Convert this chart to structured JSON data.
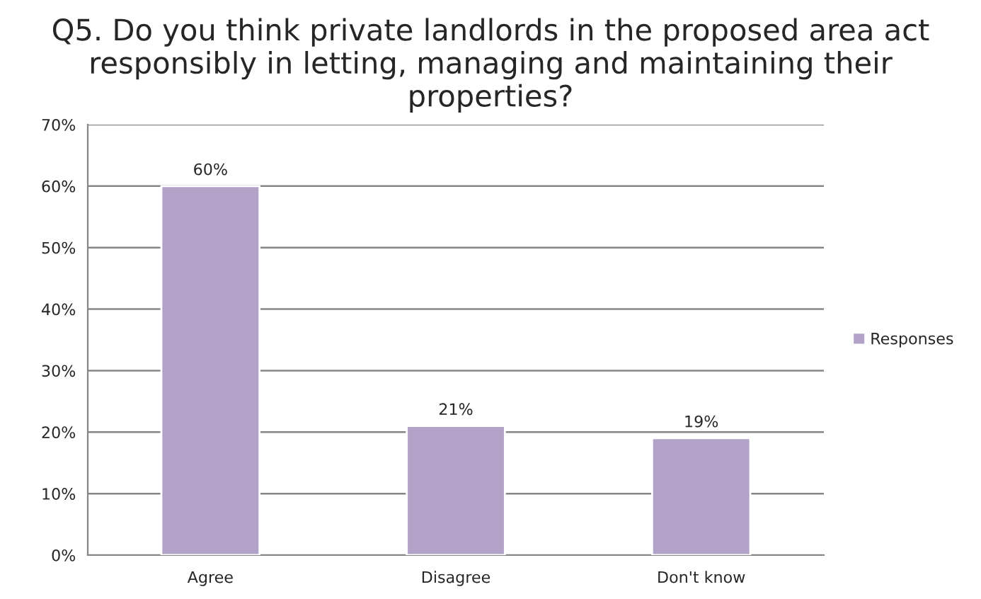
{
  "chart_data": {
    "type": "bar",
    "title": "Q5. Do you think private landlords in the proposed area act responsibly in letting, managing and maintaining their properties?",
    "categories": [
      "Agree",
      "Disagree",
      "Don't know"
    ],
    "series": [
      {
        "name": "Responses",
        "color": "#b3a2c7",
        "values": [
          60,
          21,
          19
        ]
      }
    ],
    "value_labels": [
      "60%",
      "21%",
      "19%"
    ],
    "ylim": [
      0,
      70
    ],
    "yticks": [
      {
        "value": 0,
        "label": "0%"
      },
      {
        "value": 10,
        "label": "10%"
      },
      {
        "value": 20,
        "label": "20%"
      },
      {
        "value": 30,
        "label": "30%"
      },
      {
        "value": 40,
        "label": "40%"
      },
      {
        "value": 50,
        "label": "50%"
      },
      {
        "value": 60,
        "label": "60%"
      },
      {
        "value": 70,
        "label": "70%"
      }
    ],
    "grid": "y",
    "legend": "right"
  }
}
